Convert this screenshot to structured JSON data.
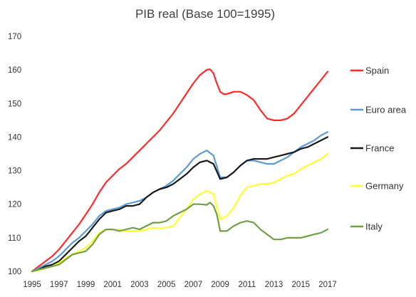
{
  "chart_data": {
    "type": "line",
    "title": "PIB real (Base 100=1995)",
    "xlabel": "",
    "ylabel": "",
    "xlim": [
      1995,
      2017
    ],
    "ylim": [
      100,
      170
    ],
    "x_ticks": [
      "1995",
      "1997",
      "1999",
      "2001",
      "2003",
      "2005",
      "2007",
      "2009",
      "2011",
      "2013",
      "2015",
      "2017"
    ],
    "y_ticks": [
      "100",
      "110",
      "120",
      "130",
      "140",
      "150",
      "160",
      "170"
    ],
    "grid": false,
    "legend_position": "right",
    "series": [
      {
        "name": "Spain",
        "color": "#ff2a2a",
        "x": [
          1995,
          1995.5,
          1996,
          1996.5,
          1997,
          1997.5,
          1998,
          1998.5,
          1999,
          1999.5,
          2000,
          2000.5,
          2001,
          2001.5,
          2002,
          2002.5,
          2003,
          2003.5,
          2004,
          2004.5,
          2005,
          2005.5,
          2006,
          2006.5,
          2007,
          2007.5,
          2008,
          2008.25,
          2008.5,
          2008.75,
          2009,
          2009.25,
          2009.5,
          2010,
          2010.5,
          2011,
          2011.5,
          2012,
          2012.5,
          2013,
          2013.5,
          2014,
          2014.5,
          2015,
          2015.5,
          2016,
          2016.5,
          2017
        ],
        "values": [
          100,
          101.5,
          103,
          104.5,
          106.5,
          109,
          111.5,
          114,
          117,
          120,
          123.5,
          126.5,
          128.5,
          130.5,
          132,
          134,
          136,
          138,
          140,
          142,
          144.5,
          147,
          150,
          153,
          156,
          158.5,
          160,
          160.2,
          159,
          156,
          153.5,
          152.8,
          152.8,
          153.5,
          153.5,
          152.5,
          151,
          148,
          145.5,
          145,
          145,
          145.5,
          147,
          149.5,
          152,
          154.5,
          157,
          159.5
        ]
      },
      {
        "name": "Euro area",
        "color": "#5b9bd5",
        "x": [
          1995,
          1995.5,
          1996,
          1996.5,
          1997,
          1997.5,
          1998,
          1998.5,
          1999,
          1999.5,
          2000,
          2000.5,
          2001,
          2001.5,
          2002,
          2002.5,
          2003,
          2003.5,
          2004,
          2004.5,
          2005,
          2005.5,
          2006,
          2006.5,
          2007,
          2007.5,
          2008,
          2008.5,
          2009,
          2009.5,
          2010,
          2010.5,
          2011,
          2011.5,
          2012,
          2012.5,
          2013,
          2013.5,
          2014,
          2014.5,
          2015,
          2015.5,
          2016,
          2016.5,
          2017
        ],
        "values": [
          100,
          101,
          102,
          103,
          104.5,
          106.5,
          108.5,
          110,
          112,
          114,
          116.5,
          118,
          118.5,
          119,
          120,
          120.5,
          121,
          122,
          123.5,
          124.5,
          125.5,
          127,
          129,
          131,
          133.5,
          135,
          136,
          134.5,
          128,
          128,
          129.5,
          131.5,
          133,
          133,
          132.5,
          132,
          132,
          133,
          134,
          135.5,
          137,
          138,
          139,
          140.5,
          141.5
        ]
      },
      {
        "name": "France",
        "color": "#1a1a1a",
        "x": [
          1995,
          1995.5,
          1996,
          1996.5,
          1997,
          1997.5,
          1998,
          1998.5,
          1999,
          1999.5,
          2000,
          2000.5,
          2001,
          2001.5,
          2002,
          2002.5,
          2003,
          2003.5,
          2004,
          2004.5,
          2005,
          2005.5,
          2006,
          2006.5,
          2007,
          2007.5,
          2008,
          2008.5,
          2009,
          2009.5,
          2010,
          2010.5,
          2011,
          2011.5,
          2012,
          2012.5,
          2013,
          2013.5,
          2014,
          2014.5,
          2015,
          2015.5,
          2016,
          2016.5,
          2017
        ],
        "values": [
          100,
          100.5,
          101.5,
          102,
          103,
          105,
          107,
          109,
          110.5,
          113,
          115.5,
          117.5,
          118,
          118.5,
          119.5,
          119.5,
          120,
          122,
          123.5,
          124.5,
          125,
          126,
          127.5,
          129,
          131,
          132.5,
          133,
          132,
          127.5,
          128,
          129.5,
          131.5,
          133,
          133.5,
          133.5,
          133.5,
          134,
          134.5,
          135,
          135.5,
          136.5,
          137,
          138,
          139,
          140
        ]
      },
      {
        "name": "Germany",
        "color": "#ffff33",
        "x": [
          1995,
          1995.5,
          1996,
          1996.5,
          1997,
          1997.5,
          1998,
          1998.5,
          1999,
          1999.5,
          2000,
          2000.5,
          2001,
          2001.5,
          2002,
          2002.5,
          2003,
          2003.5,
          2004,
          2004.5,
          2005,
          2005.5,
          2006,
          2006.5,
          2007,
          2007.5,
          2008,
          2008.5,
          2009,
          2009.5,
          2010,
          2010.5,
          2011,
          2011.5,
          2012,
          2012.5,
          2013,
          2013.5,
          2014,
          2014.5,
          2015,
          2015.5,
          2016,
          2016.5,
          2017
        ],
        "values": [
          100,
          100.3,
          101,
          101.5,
          102.5,
          104,
          105,
          106,
          107,
          109,
          111.5,
          112.5,
          112.5,
          112.5,
          112,
          112,
          112,
          112.5,
          113,
          112.8,
          113,
          113.5,
          116,
          118.5,
          121.5,
          123,
          124,
          123,
          115.5,
          116.5,
          119,
          122.5,
          125,
          125.5,
          126,
          126,
          126.5,
          127.5,
          128.5,
          129,
          130.5,
          131.5,
          132.5,
          133.5,
          135
        ]
      },
      {
        "name": "Italy",
        "color": "#70a046",
        "x": [
          1995,
          1995.5,
          1996,
          1996.5,
          1997,
          1997.5,
          1998,
          1998.5,
          1999,
          1999.5,
          2000,
          2000.5,
          2001,
          2001.5,
          2002,
          2002.5,
          2003,
          2003.5,
          2004,
          2004.5,
          2005,
          2005.5,
          2006,
          2006.5,
          2007,
          2007.5,
          2008,
          2008.25,
          2008.5,
          2008.75,
          2009,
          2009.5,
          2010,
          2010.5,
          2011,
          2011.5,
          2012,
          2012.5,
          2013,
          2013.5,
          2014,
          2014.5,
          2015,
          2015.5,
          2016,
          2016.5,
          2017
        ],
        "values": [
          100,
          100.5,
          101,
          101.5,
          102,
          103.5,
          105,
          105.5,
          106,
          108,
          111,
          112.5,
          112.5,
          112,
          112.5,
          113,
          112.5,
          113.5,
          114.5,
          114.5,
          115,
          116.5,
          117.5,
          118.5,
          120,
          120,
          119.8,
          120.5,
          119.5,
          117,
          112,
          112,
          113.5,
          114.5,
          115,
          114.5,
          112.5,
          111,
          109.5,
          109.5,
          110,
          110,
          110,
          110.5,
          111,
          111.5,
          112.5
        ]
      }
    ]
  }
}
